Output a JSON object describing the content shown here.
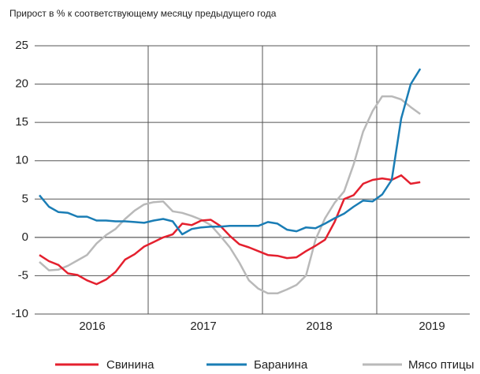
{
  "chart_data": {
    "type": "line",
    "title": "Прирост в % к соответствующему месяцу предыдущего года",
    "categories": [
      null,
      null,
      null,
      null,
      null,
      null,
      null,
      null,
      null,
      null,
      null,
      null,
      null,
      null,
      null,
      null,
      null,
      null,
      null,
      null,
      null,
      null,
      null,
      null,
      null,
      null,
      null,
      null,
      null,
      null,
      null,
      null,
      null,
      null,
      null,
      null,
      null,
      null,
      null,
      null,
      null
    ],
    "year_labels": [
      "2016",
      "2017",
      "2018",
      "2019"
    ],
    "series": [
      {
        "name": "Свинина",
        "color": "#e4202e",
        "values": [
          -2.3,
          -3.1,
          -3.6,
          -4.7,
          -4.9,
          -5.6,
          -6.1,
          -5.5,
          -4.5,
          -2.9,
          -2.2,
          -1.2,
          -0.6,
          0,
          0.4,
          1.8,
          1.6,
          2.2,
          2.3,
          1.5,
          0.2,
          -0.9,
          -1.3,
          -1.8,
          -2.3,
          -2.4,
          -2.7,
          -2.6,
          -1.8,
          -1.1,
          -0.3,
          2.0,
          5.0,
          5.5,
          7.0,
          7.5,
          7.7,
          7.5,
          8.1,
          7.0,
          7.2
        ]
      },
      {
        "name": "Баранина",
        "color": "#1a7db5",
        "values": [
          5.5,
          4.0,
          3.3,
          3.2,
          2.7,
          2.7,
          2.2,
          2.2,
          2.1,
          2.1,
          2.0,
          1.9,
          2.2,
          2.4,
          2.1,
          0.4,
          1.1,
          1.3,
          1.4,
          1.4,
          1.5,
          1.5,
          1.5,
          1.5,
          2.0,
          1.8,
          1.0,
          0.8,
          1.3,
          1.2,
          1.8,
          2.5,
          3.1,
          4.0,
          4.8,
          4.7,
          5.6,
          7.5,
          15.5,
          20,
          22
        ]
      },
      {
        "name": "Мясо птицы",
        "color": "#b9b9b9",
        "values": [
          -3.2,
          -4.3,
          -4.2,
          -3.7,
          -3.0,
          -2.3,
          -0.8,
          0.3,
          1.1,
          2.4,
          3.5,
          4.3,
          4.6,
          4.7,
          3.4,
          3.2,
          2.8,
          2.3,
          1.6,
          0.2,
          -1.3,
          -3.3,
          -5.6,
          -6.7,
          -7.3,
          -7.3,
          -6.8,
          -6.2,
          -5.0,
          -0.3,
          2.5,
          4.5,
          6.0,
          9.5,
          13.8,
          16.5,
          18.4,
          18.4,
          18.0,
          17.0,
          16.1
        ]
      }
    ],
    "ylim": [
      -10,
      25
    ],
    "yticks": [
      -10,
      -5,
      0,
      5,
      10,
      15,
      20,
      25
    ],
    "grid": true
  }
}
